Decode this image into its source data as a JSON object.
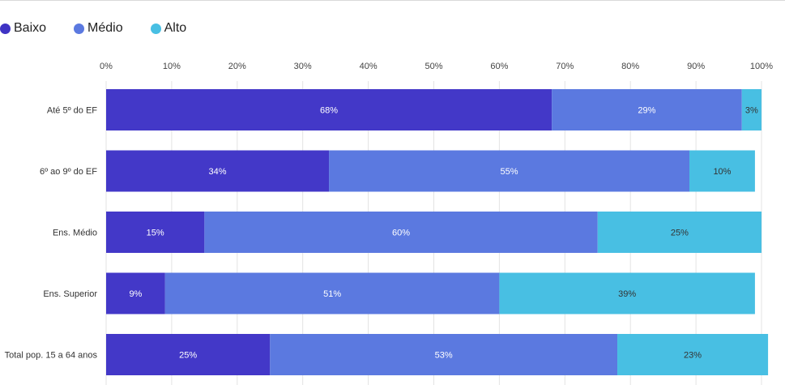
{
  "chart_data": {
    "type": "bar",
    "orientation": "horizontal",
    "stacked": true,
    "categories": [
      "Até 5º do EF",
      "6º ao 9º do EF",
      "Ens. Médio",
      "Ens. Superior",
      "Total pop. 15 a 64 anos"
    ],
    "series": [
      {
        "name": "Baixo",
        "color": "#4338c8",
        "values": [
          68,
          34,
          15,
          9,
          25
        ],
        "labels": [
          "68%",
          "34%",
          "15%",
          "9%",
          "25%"
        ]
      },
      {
        "name": "Médio",
        "color": "#5b79e0",
        "values": [
          29,
          55,
          60,
          51,
          53
        ],
        "labels": [
          "29%",
          "55%",
          "60%",
          "51%",
          "53%"
        ]
      },
      {
        "name": "Alto",
        "color": "#48bfe3",
        "values": [
          3,
          10,
          25,
          39,
          23
        ],
        "labels": [
          "3%",
          "10%",
          "25%",
          "39%",
          "23%"
        ]
      }
    ],
    "xlim": [
      0,
      100
    ],
    "xticks": [
      "0%",
      "10%",
      "20%",
      "30%",
      "40%",
      "50%",
      "60%",
      "70%",
      "80%",
      "90%",
      "100%"
    ],
    "grid": true,
    "legend_position": "top-left"
  }
}
